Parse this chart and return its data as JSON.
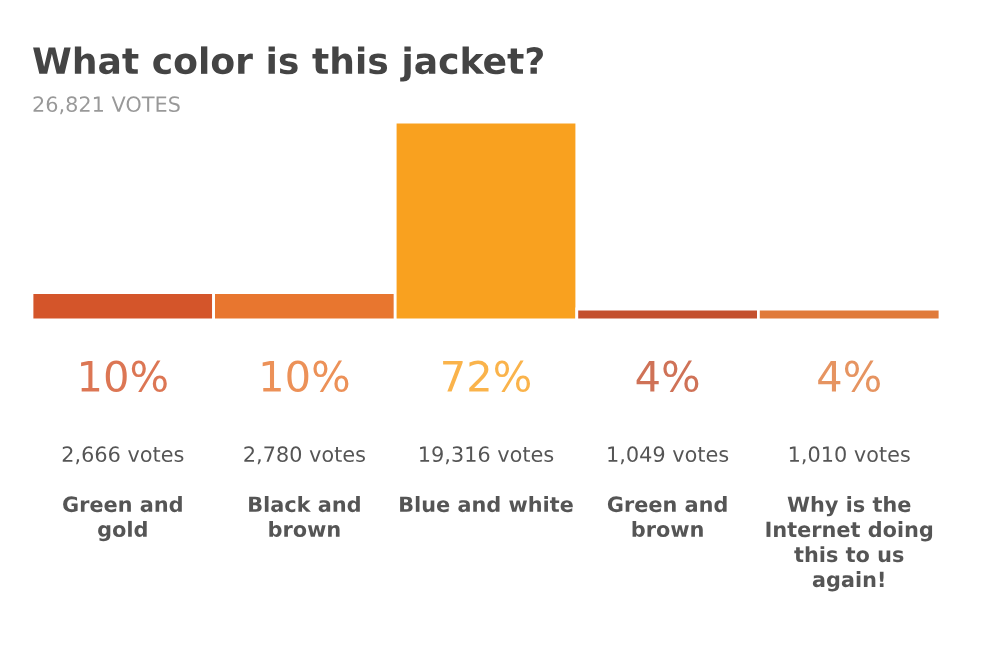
{
  "chart_data": {
    "type": "bar",
    "title": "What color is this jacket?",
    "subtitle": "26,821 VOTES",
    "categories": [
      "Green and\ngold",
      "Black and\nbrown",
      "Blue and white",
      "Green and\nbrown",
      "Why is the\nInternet doing\nthis to us\nagain!"
    ],
    "values": [
      10,
      10,
      72,
      4,
      4
    ],
    "colors": [
      "#d4552a",
      "#e8762f",
      "#f9a11f",
      "#c4502e",
      "#e07a3a"
    ],
    "value_labels": [
      "10%",
      "10%",
      "72%",
      "4%",
      "4%"
    ],
    "annotations": [
      "2,666 votes",
      "2,780 votes",
      "19,316 votes",
      "1,049 votes",
      "1,010 votes"
    ]
  }
}
